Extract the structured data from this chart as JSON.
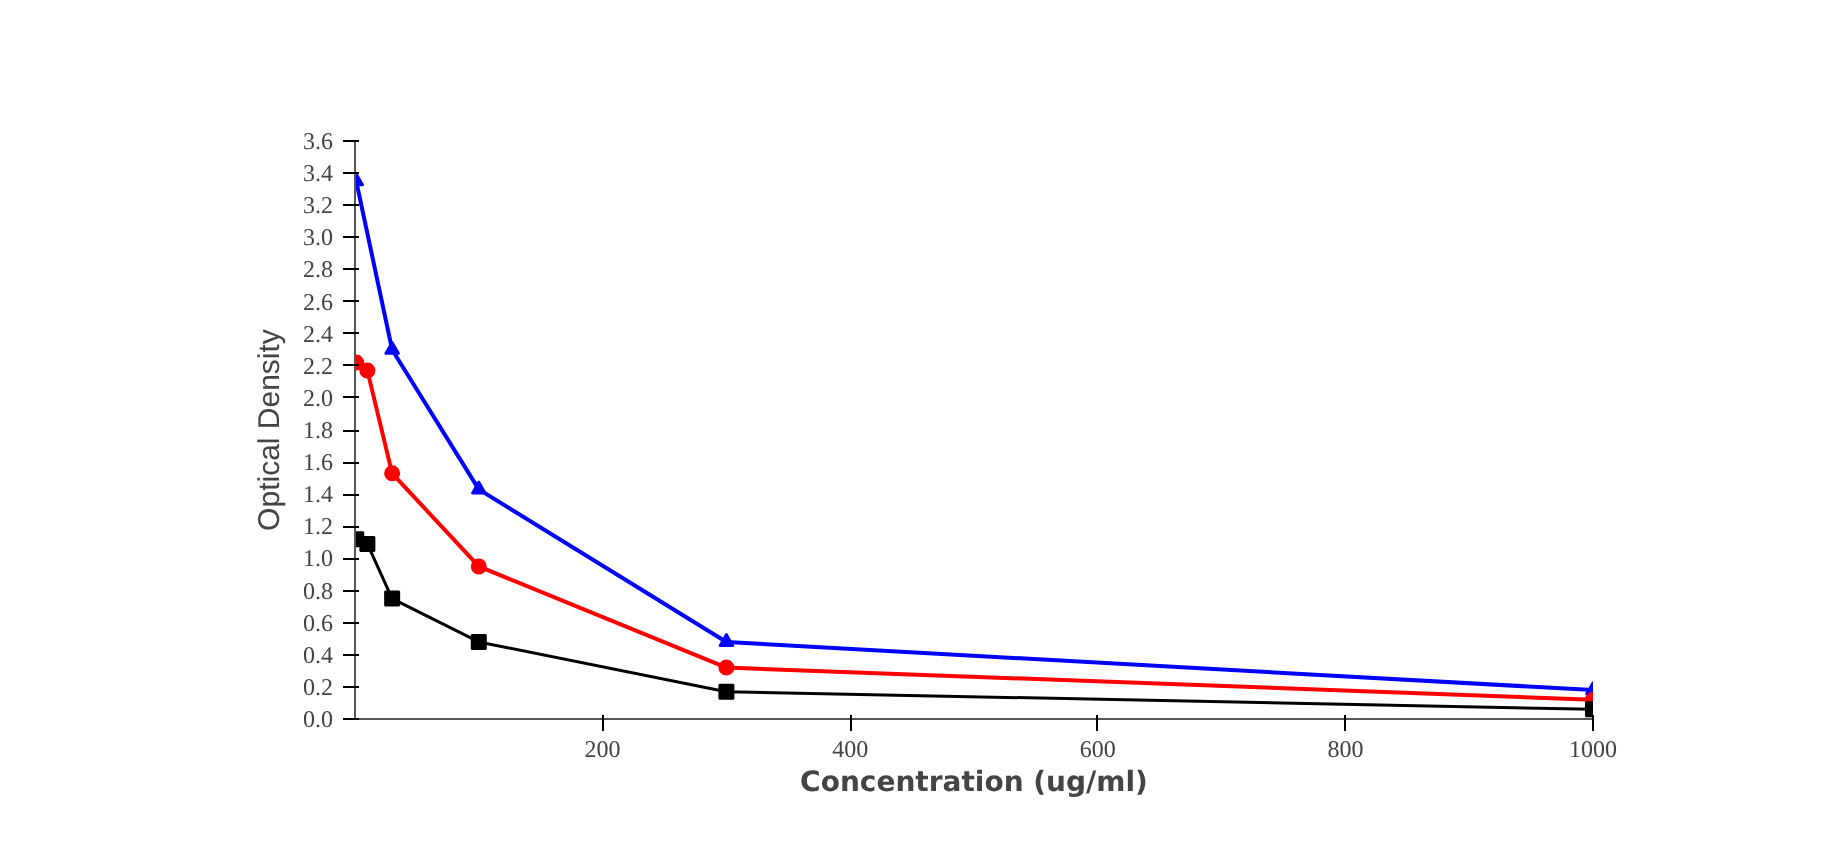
{
  "chart_data": {
    "type": "line",
    "xlabel": "Concentration (ug/ml)",
    "ylabel": "Optical Density",
    "xlim": [
      0,
      1000
    ],
    "xticks": [
      200,
      400,
      600,
      800,
      1000
    ],
    "ylim": [
      0,
      3.6
    ],
    "yticks": [
      {
        "value": 0,
        "label": "0.0"
      },
      {
        "value": 0.2,
        "label": "0.2"
      },
      {
        "value": 0.4,
        "label": "0.4"
      },
      {
        "value": 0.6,
        "label": "0.6"
      },
      {
        "value": 0.8,
        "label": "0.8"
      },
      {
        "value": 1,
        "label": "1.0"
      },
      {
        "value": 1.2,
        "label": "1.2"
      },
      {
        "value": 1.4,
        "label": "1.4"
      },
      {
        "value": 1.6,
        "label": "1.6"
      },
      {
        "value": 1.8,
        "label": "1.8"
      },
      {
        "value": 2,
        "label": "2.0"
      },
      {
        "value": 2.2,
        "label": "2.2"
      },
      {
        "value": 2.4,
        "label": "2.4"
      },
      {
        "value": 2.6,
        "label": "2.6"
      },
      {
        "value": 2.8,
        "label": "2.8"
      },
      {
        "value": 3,
        "label": "3.0"
      },
      {
        "value": 3.2,
        "label": "3.2"
      },
      {
        "value": 3.4,
        "label": "3.4"
      },
      {
        "value": 3.6,
        "label": "3.6"
      }
    ],
    "grid": false,
    "line_style": "solid",
    "series": [
      {
        "color": "#0000ff",
        "marker": "triangle",
        "x": [
          1,
          30,
          100,
          300,
          1000
        ],
        "values": [
          3.35,
          2.3,
          1.43,
          0.48,
          0.18
        ]
      },
      {
        "color": "#ff0000",
        "marker": "circle",
        "x": [
          1,
          10,
          30,
          100,
          300,
          1000
        ],
        "values": [
          2.22,
          2.17,
          1.53,
          0.95,
          0.32,
          0.12
        ]
      },
      {
        "color": "#000000",
        "marker": "square",
        "x": [
          1,
          10,
          30,
          100,
          300,
          1000
        ],
        "values": [
          1.12,
          1.09,
          0.75,
          0.48,
          0.17,
          0.06
        ]
      }
    ]
  }
}
